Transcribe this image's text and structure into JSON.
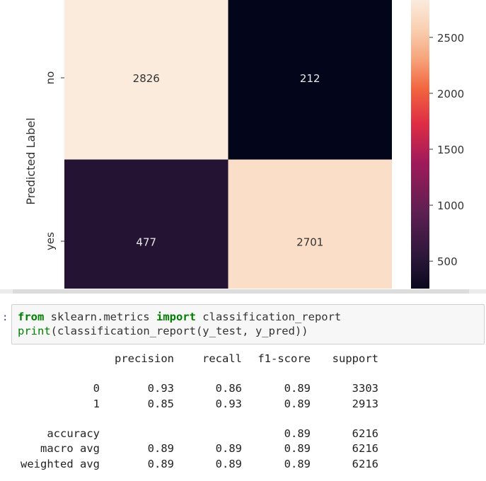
{
  "heatmap": {
    "ylabel": "Predicted Label",
    "row_labels": [
      "no",
      "yes"
    ],
    "matrix": [
      [
        2826,
        212
      ],
      [
        477,
        2701
      ]
    ],
    "annotations": [
      [
        "2826",
        "212"
      ],
      [
        "477",
        "2701"
      ]
    ],
    "colorbar": {
      "ticks": [
        "2500",
        "2000",
        "1500",
        "1000",
        "500"
      ],
      "tick_values": [
        2500,
        2000,
        1500,
        1000,
        500
      ],
      "min": 212,
      "max": 2826,
      "colormap": "rocket"
    }
  },
  "cell": {
    "prompt": ":",
    "line1": {
      "kw1": "from",
      "mod": " sklearn.metrics ",
      "kw2": "import",
      "name": " classification_report"
    },
    "line2": {
      "fn": "print",
      "rest": "(classification_report(y_test, y_pred))"
    }
  },
  "report": {
    "headers": [
      "precision",
      "recall",
      "f1-score",
      "support"
    ],
    "rows": [
      {
        "label": "0",
        "precision": "0.93",
        "recall": "0.86",
        "f1": "0.89",
        "support": "3303"
      },
      {
        "label": "1",
        "precision": "0.85",
        "recall": "0.93",
        "f1": "0.89",
        "support": "2913"
      },
      {
        "label": "accuracy",
        "precision": "",
        "recall": "",
        "f1": "0.89",
        "support": "6216"
      },
      {
        "label": "macro avg",
        "precision": "0.89",
        "recall": "0.89",
        "f1": "0.89",
        "support": "6216"
      },
      {
        "label": "weighted avg",
        "precision": "0.89",
        "recall": "0.89",
        "f1": "0.89",
        "support": "6216"
      }
    ]
  },
  "chart_data": {
    "type": "heatmap",
    "ylabel": "Predicted Label",
    "rows": [
      "no",
      "yes"
    ],
    "values": [
      [
        2826,
        212
      ],
      [
        477,
        2701
      ]
    ],
    "colorbar_ticks": [
      500,
      1000,
      1500,
      2000,
      2500
    ]
  }
}
